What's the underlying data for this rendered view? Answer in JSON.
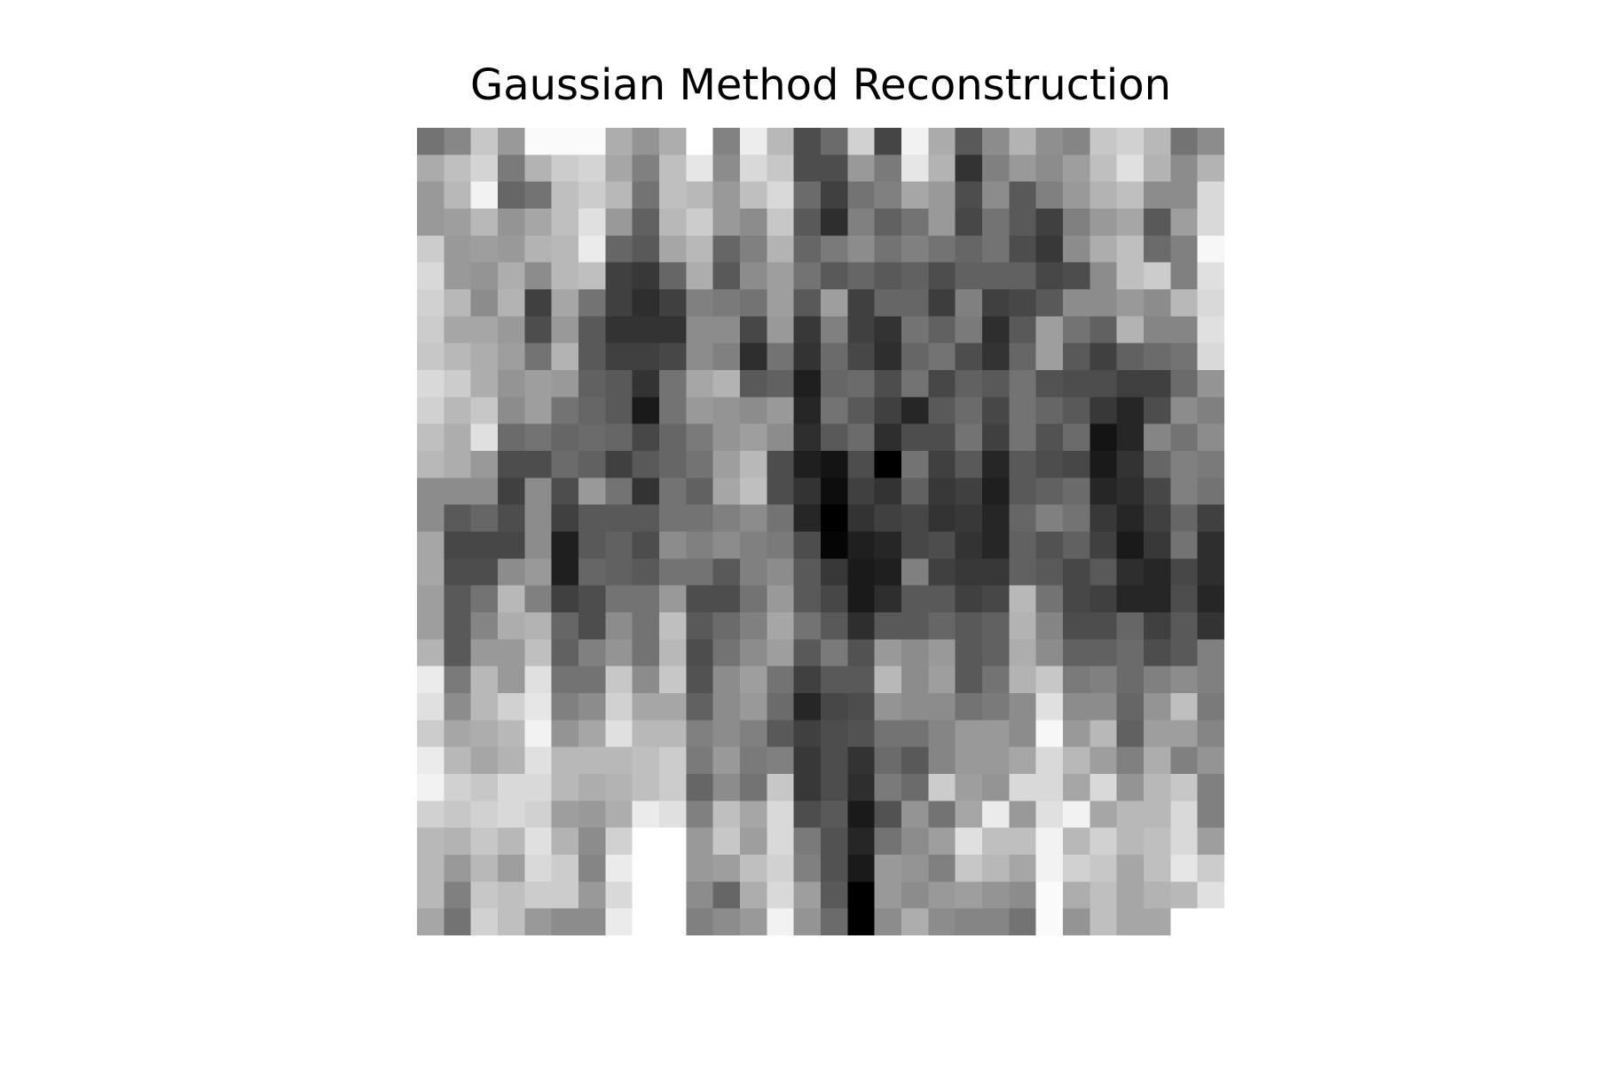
{
  "chart_data": {
    "type": "heatmap",
    "title": "Gaussian Method Reconstruction",
    "colormap": "gray",
    "axes_visible": false,
    "rows": 30,
    "cols": 30,
    "values": [
      [
        0.45,
        0.53,
        0.78,
        0.6,
        0.98,
        0.98,
        0.98,
        0.68,
        0.58,
        0.68,
        1.0,
        0.51,
        0.93,
        0.72,
        0.3,
        0.42,
        0.82,
        0.27,
        0.95,
        0.67,
        0.35,
        0.55,
        0.7,
        0.56,
        0.52,
        0.78,
        0.82,
        0.72,
        0.45,
        0.55
      ],
      [
        0.67,
        0.75,
        0.83,
        0.48,
        0.7,
        0.8,
        0.83,
        0.65,
        0.5,
        0.75,
        0.9,
        0.55,
        0.85,
        0.78,
        0.3,
        0.3,
        0.6,
        0.48,
        0.9,
        0.7,
        0.2,
        0.5,
        0.6,
        0.55,
        0.62,
        0.75,
        0.88,
        0.7,
        0.55,
        0.7
      ],
      [
        0.6,
        0.72,
        0.95,
        0.4,
        0.45,
        0.75,
        0.8,
        0.72,
        0.45,
        0.75,
        0.72,
        0.6,
        0.75,
        0.85,
        0.42,
        0.25,
        0.45,
        0.5,
        0.65,
        0.6,
        0.3,
        0.55,
        0.35,
        0.5,
        0.6,
        0.7,
        0.75,
        0.55,
        0.55,
        0.85
      ],
      [
        0.6,
        0.62,
        0.72,
        0.58,
        0.65,
        0.75,
        0.88,
        0.6,
        0.38,
        0.72,
        0.8,
        0.6,
        0.55,
        0.78,
        0.35,
        0.18,
        0.5,
        0.38,
        0.45,
        0.6,
        0.28,
        0.45,
        0.35,
        0.25,
        0.5,
        0.6,
        0.65,
        0.35,
        0.62,
        0.85
      ],
      [
        0.8,
        0.6,
        0.62,
        0.6,
        0.7,
        0.72,
        0.92,
        0.4,
        0.35,
        0.65,
        0.72,
        0.4,
        0.5,
        0.7,
        0.4,
        0.48,
        0.55,
        0.45,
        0.5,
        0.45,
        0.4,
        0.45,
        0.3,
        0.22,
        0.55,
        0.68,
        0.75,
        0.42,
        0.5,
        0.97
      ],
      [
        0.85,
        0.6,
        0.58,
        0.68,
        0.55,
        0.72,
        0.75,
        0.25,
        0.22,
        0.4,
        0.68,
        0.35,
        0.55,
        0.62,
        0.45,
        0.35,
        0.4,
        0.35,
        0.38,
        0.3,
        0.38,
        0.38,
        0.38,
        0.28,
        0.3,
        0.55,
        0.75,
        0.8,
        0.5,
        0.88
      ],
      [
        0.82,
        0.72,
        0.55,
        0.7,
        0.25,
        0.65,
        0.45,
        0.25,
        0.18,
        0.25,
        0.5,
        0.48,
        0.45,
        0.62,
        0.35,
        0.62,
        0.25,
        0.4,
        0.4,
        0.24,
        0.5,
        0.25,
        0.28,
        0.35,
        0.55,
        0.55,
        0.6,
        0.55,
        0.72,
        0.85
      ],
      [
        0.8,
        0.65,
        0.65,
        0.6,
        0.3,
        0.6,
        0.35,
        0.2,
        0.2,
        0.2,
        0.55,
        0.55,
        0.28,
        0.6,
        0.22,
        0.5,
        0.25,
        0.2,
        0.45,
        0.38,
        0.48,
        0.18,
        0.35,
        0.62,
        0.45,
        0.38,
        0.7,
        0.52,
        0.52,
        0.88
      ],
      [
        0.78,
        0.72,
        0.68,
        0.62,
        0.45,
        0.7,
        0.35,
        0.25,
        0.25,
        0.28,
        0.55,
        0.5,
        0.18,
        0.45,
        0.2,
        0.42,
        0.28,
        0.18,
        0.4,
        0.45,
        0.3,
        0.2,
        0.4,
        0.62,
        0.35,
        0.25,
        0.38,
        0.42,
        0.45,
        0.85
      ],
      [
        0.85,
        0.8,
        0.68,
        0.58,
        0.62,
        0.6,
        0.38,
        0.35,
        0.2,
        0.45,
        0.65,
        0.7,
        0.35,
        0.38,
        0.12,
        0.4,
        0.42,
        0.3,
        0.45,
        0.28,
        0.38,
        0.35,
        0.45,
        0.32,
        0.3,
        0.3,
        0.25,
        0.25,
        0.42,
        0.58
      ],
      [
        0.82,
        0.72,
        0.78,
        0.55,
        0.62,
        0.45,
        0.4,
        0.35,
        0.1,
        0.45,
        0.6,
        0.58,
        0.55,
        0.6,
        0.15,
        0.45,
        0.35,
        0.25,
        0.15,
        0.35,
        0.42,
        0.28,
        0.45,
        0.4,
        0.35,
        0.22,
        0.15,
        0.3,
        0.55,
        0.5
      ],
      [
        0.75,
        0.68,
        0.88,
        0.42,
        0.45,
        0.4,
        0.42,
        0.4,
        0.28,
        0.4,
        0.48,
        0.58,
        0.62,
        0.55,
        0.18,
        0.35,
        0.42,
        0.18,
        0.3,
        0.3,
        0.45,
        0.25,
        0.45,
        0.32,
        0.42,
        0.08,
        0.15,
        0.52,
        0.45,
        0.55
      ],
      [
        0.72,
        0.68,
        0.6,
        0.3,
        0.3,
        0.42,
        0.38,
        0.25,
        0.35,
        0.4,
        0.45,
        0.62,
        0.72,
        0.3,
        0.12,
        0.08,
        0.3,
        0.0,
        0.45,
        0.25,
        0.35,
        0.15,
        0.35,
        0.3,
        0.28,
        0.1,
        0.2,
        0.4,
        0.5,
        0.48
      ],
      [
        0.55,
        0.55,
        0.55,
        0.25,
        0.55,
        0.3,
        0.6,
        0.45,
        0.2,
        0.45,
        0.38,
        0.65,
        0.75,
        0.3,
        0.2,
        0.05,
        0.25,
        0.2,
        0.38,
        0.22,
        0.25,
        0.12,
        0.35,
        0.38,
        0.42,
        0.15,
        0.18,
        0.28,
        0.5,
        0.45
      ],
      [
        0.55,
        0.35,
        0.4,
        0.3,
        0.55,
        0.25,
        0.35,
        0.35,
        0.35,
        0.45,
        0.45,
        0.5,
        0.55,
        0.45,
        0.15,
        0.0,
        0.2,
        0.25,
        0.28,
        0.2,
        0.22,
        0.15,
        0.4,
        0.5,
        0.45,
        0.22,
        0.15,
        0.25,
        0.4,
        0.25
      ],
      [
        0.65,
        0.28,
        0.28,
        0.28,
        0.55,
        0.12,
        0.35,
        0.38,
        0.3,
        0.55,
        0.5,
        0.55,
        0.5,
        0.48,
        0.3,
        0.02,
        0.12,
        0.15,
        0.28,
        0.3,
        0.2,
        0.15,
        0.38,
        0.32,
        0.38,
        0.25,
        0.1,
        0.22,
        0.45,
        0.18
      ],
      [
        0.65,
        0.3,
        0.3,
        0.55,
        0.6,
        0.12,
        0.4,
        0.38,
        0.35,
        0.45,
        0.45,
        0.35,
        0.5,
        0.55,
        0.35,
        0.22,
        0.1,
        0.12,
        0.5,
        0.25,
        0.22,
        0.22,
        0.38,
        0.35,
        0.28,
        0.35,
        0.18,
        0.15,
        0.28,
        0.18
      ],
      [
        0.62,
        0.35,
        0.45,
        0.72,
        0.5,
        0.25,
        0.3,
        0.45,
        0.45,
        0.6,
        0.3,
        0.3,
        0.45,
        0.6,
        0.35,
        0.28,
        0.1,
        0.18,
        0.35,
        0.35,
        0.25,
        0.28,
        0.72,
        0.45,
        0.28,
        0.25,
        0.15,
        0.15,
        0.3,
        0.15
      ],
      [
        0.62,
        0.35,
        0.52,
        0.68,
        0.7,
        0.4,
        0.3,
        0.55,
        0.45,
        0.75,
        0.35,
        0.42,
        0.5,
        0.65,
        0.45,
        0.35,
        0.18,
        0.35,
        0.35,
        0.4,
        0.35,
        0.38,
        0.7,
        0.52,
        0.3,
        0.3,
        0.4,
        0.25,
        0.35,
        0.2
      ],
      [
        0.7,
        0.35,
        0.6,
        0.6,
        0.75,
        0.38,
        0.5,
        0.58,
        0.45,
        0.72,
        0.3,
        0.45,
        0.55,
        0.62,
        0.35,
        0.48,
        0.32,
        0.6,
        0.55,
        0.6,
        0.35,
        0.38,
        0.68,
        0.55,
        0.38,
        0.38,
        0.42,
        0.3,
        0.35,
        0.5
      ],
      [
        0.92,
        0.48,
        0.72,
        0.6,
        0.88,
        0.45,
        0.45,
        0.78,
        0.55,
        0.78,
        0.32,
        0.55,
        0.62,
        0.45,
        0.25,
        0.35,
        0.35,
        0.72,
        0.55,
        0.62,
        0.35,
        0.45,
        0.7,
        0.78,
        0.48,
        0.5,
        0.42,
        0.5,
        0.55,
        0.5
      ],
      [
        0.88,
        0.55,
        0.72,
        0.82,
        0.9,
        0.5,
        0.55,
        0.82,
        0.65,
        0.65,
        0.38,
        0.55,
        0.6,
        0.42,
        0.15,
        0.28,
        0.3,
        0.58,
        0.55,
        0.55,
        0.45,
        0.48,
        0.55,
        0.88,
        0.55,
        0.55,
        0.4,
        0.58,
        0.75,
        0.48
      ],
      [
        0.8,
        0.65,
        0.68,
        0.72,
        0.95,
        0.58,
        0.65,
        0.88,
        0.72,
        0.72,
        0.5,
        0.55,
        0.5,
        0.35,
        0.25,
        0.3,
        0.32,
        0.45,
        0.45,
        0.52,
        0.6,
        0.6,
        0.55,
        0.97,
        0.6,
        0.72,
        0.38,
        0.62,
        0.62,
        0.52
      ],
      [
        0.92,
        0.72,
        0.65,
        0.7,
        0.88,
        0.72,
        0.72,
        0.72,
        0.75,
        0.8,
        0.48,
        0.6,
        0.48,
        0.5,
        0.22,
        0.3,
        0.2,
        0.42,
        0.35,
        0.52,
        0.6,
        0.6,
        0.65,
        0.85,
        0.72,
        0.62,
        0.5,
        0.68,
        0.5,
        0.58
      ],
      [
        0.95,
        0.82,
        0.78,
        0.85,
        0.85,
        0.72,
        0.68,
        0.7,
        0.75,
        0.8,
        0.4,
        0.55,
        0.45,
        0.78,
        0.22,
        0.3,
        0.18,
        0.48,
        0.42,
        0.8,
        0.62,
        0.58,
        0.85,
        0.85,
        0.65,
        0.85,
        0.58,
        0.72,
        0.78,
        0.5
      ],
      [
        0.82,
        0.78,
        0.82,
        0.85,
        0.82,
        0.62,
        0.6,
        0.68,
        0.92,
        0.88,
        0.5,
        0.75,
        0.65,
        0.85,
        0.3,
        0.35,
        0.1,
        0.32,
        0.58,
        0.45,
        0.65,
        0.92,
        0.6,
        0.88,
        0.95,
        0.65,
        0.72,
        0.72,
        0.85,
        0.5
      ],
      [
        0.72,
        0.7,
        0.78,
        0.72,
        0.88,
        0.7,
        0.55,
        0.82,
        1.0,
        1.0,
        0.6,
        0.78,
        0.62,
        0.85,
        0.48,
        0.32,
        0.15,
        0.45,
        0.55,
        0.62,
        0.88,
        0.75,
        0.75,
        0.95,
        0.72,
        0.82,
        0.72,
        0.75,
        0.85,
        0.62
      ],
      [
        0.72,
        0.6,
        0.72,
        0.62,
        0.85,
        0.8,
        0.52,
        0.92,
        1.0,
        1.0,
        0.6,
        0.62,
        0.75,
        0.82,
        0.5,
        0.32,
        0.1,
        0.6,
        0.58,
        0.5,
        0.78,
        0.72,
        0.65,
        0.95,
        0.82,
        0.78,
        0.65,
        0.75,
        0.9,
        0.8
      ],
      [
        0.72,
        0.5,
        0.78,
        0.75,
        0.8,
        0.8,
        0.6,
        0.85,
        1.0,
        1.0,
        0.55,
        0.4,
        0.68,
        0.85,
        0.62,
        0.35,
        0.0,
        0.6,
        0.55,
        0.6,
        0.62,
        0.58,
        0.55,
        0.98,
        0.68,
        0.75,
        0.65,
        0.7,
        0.72,
        0.88
      ],
      [
        0.65,
        0.45,
        0.82,
        0.75,
        0.6,
        0.55,
        0.55,
        0.92,
        1.0,
        1.0,
        0.5,
        0.55,
        0.6,
        0.95,
        0.58,
        0.42,
        0.0,
        0.55,
        0.68,
        0.55,
        0.52,
        0.52,
        0.45,
        0.98,
        0.58,
        0.75,
        0.65,
        0.65,
        1.0,
        1.0
      ]
    ]
  }
}
